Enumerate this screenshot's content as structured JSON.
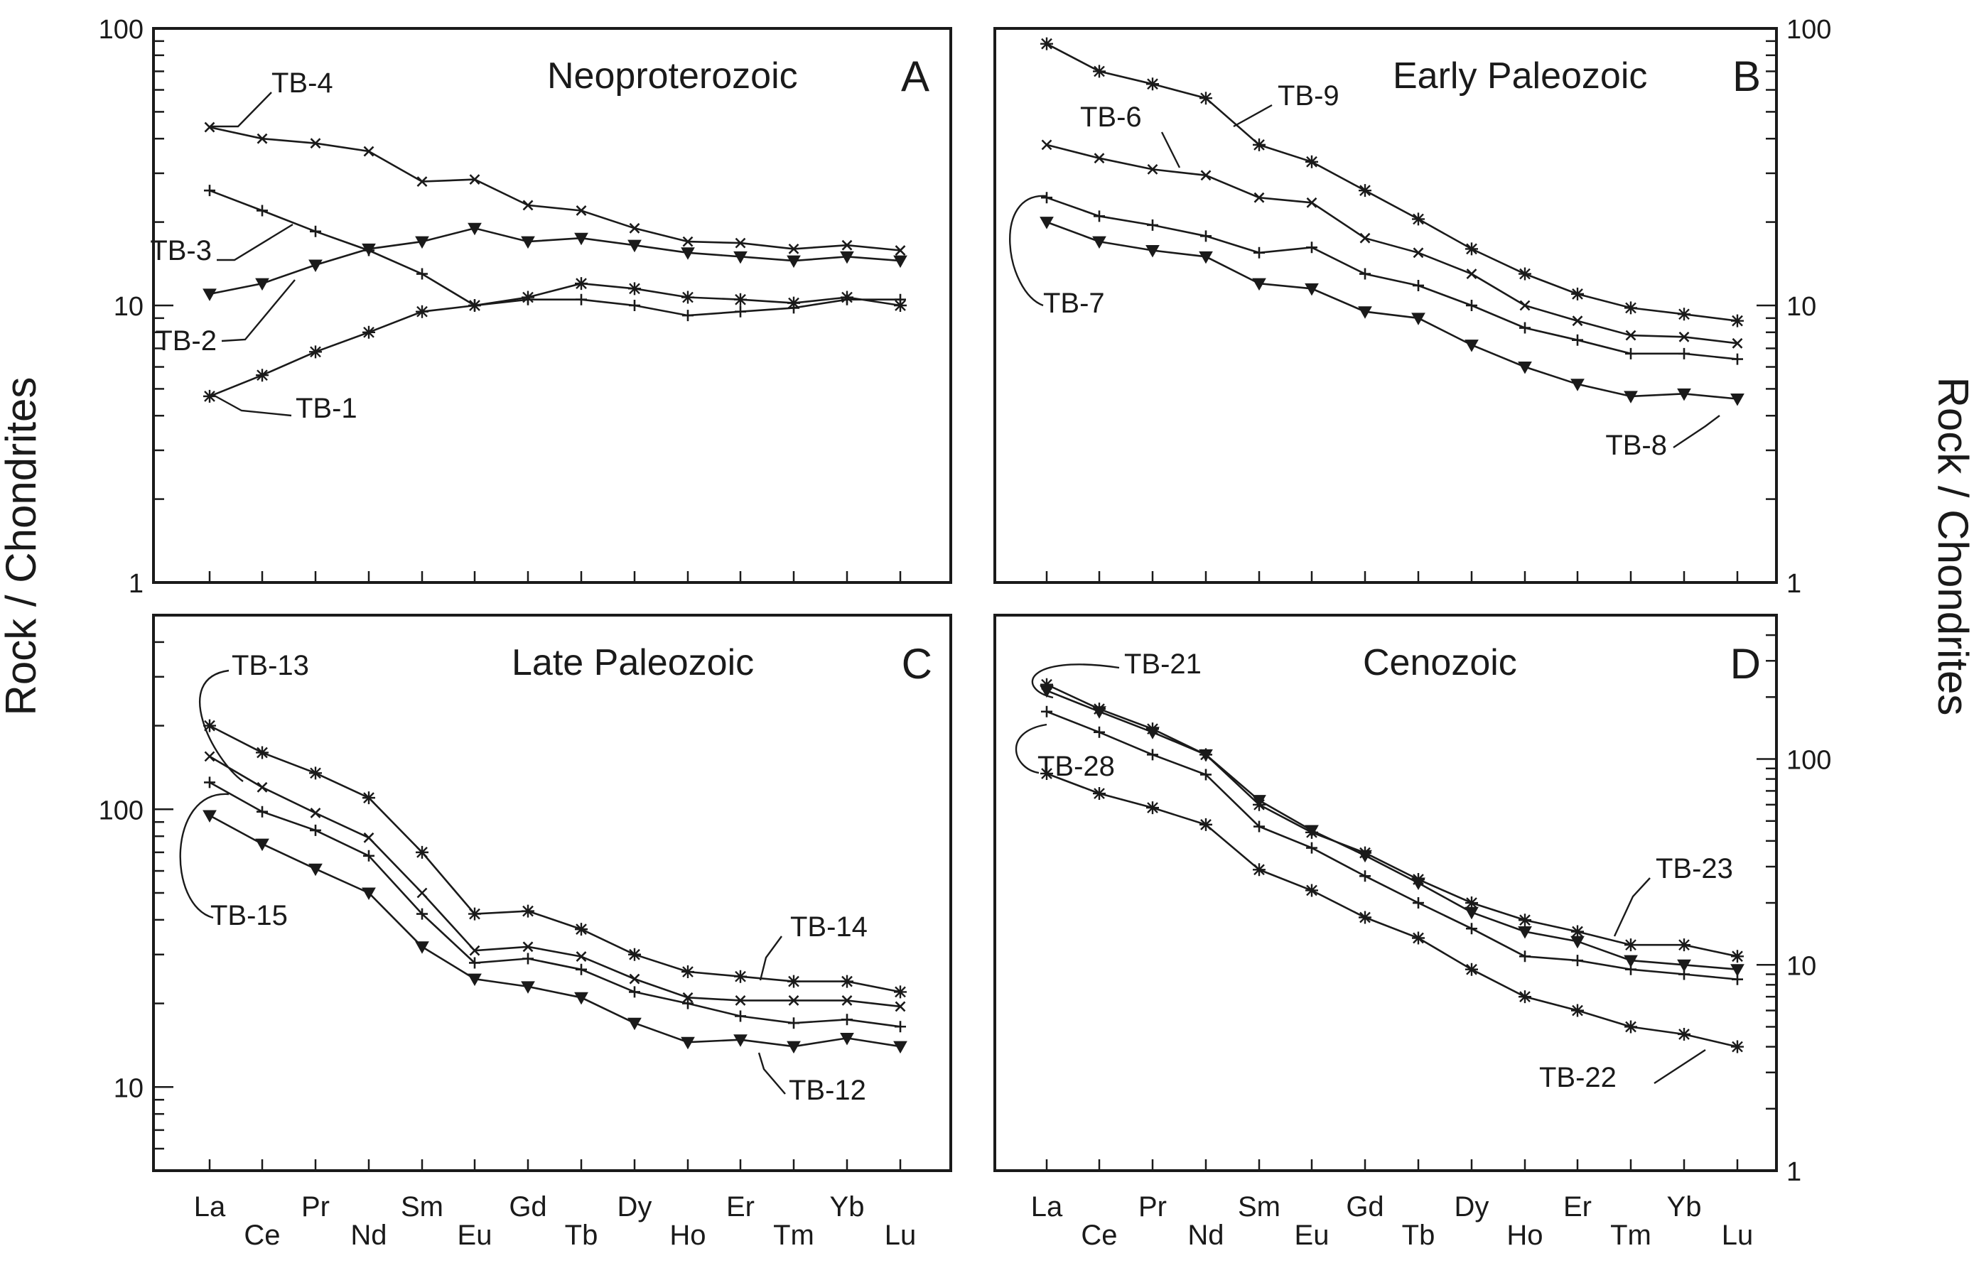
{
  "figure": {
    "ylabel_left": "Rock / Chondrites",
    "ylabel_right": "Rock / Chondrites",
    "line_color": "#1a1a1a"
  },
  "chart_data": [
    {
      "panel": "A",
      "type": "line",
      "title": "Neoproterozoic",
      "y_scale": "log",
      "ylim": [
        1,
        100
      ],
      "y_ticks": [
        "1",
        "10",
        "100"
      ],
      "y_axis_side": "left",
      "x": [
        "La",
        "Ce",
        "Pr",
        "Nd",
        "Sm",
        "Eu",
        "Gd",
        "Tb",
        "Dy",
        "Ho",
        "Er",
        "Tm",
        "Yb",
        "Lu"
      ],
      "series": [
        {
          "name": "TB-4",
          "marker": "x",
          "values": [
            44,
            40,
            38.5,
            36,
            28,
            28.5,
            23,
            22,
            19,
            17,
            16.8,
            16,
            16.5,
            15.8
          ]
        },
        {
          "name": "TB-3",
          "marker": "plus",
          "values": [
            26,
            22,
            18.5,
            15.8,
            13,
            10,
            10.5,
            10.5,
            10,
            9.2,
            9.5,
            9.8,
            10.5,
            10.5
          ]
        },
        {
          "name": "TB-2",
          "marker": "tri",
          "values": [
            11,
            12,
            14,
            16,
            17,
            19,
            17,
            17.5,
            16.5,
            15.5,
            15,
            14.5,
            15,
            14.5
          ]
        },
        {
          "name": "TB-1",
          "marker": "star",
          "values": [
            4.7,
            5.6,
            6.8,
            8,
            9.5,
            10,
            10.7,
            12,
            11.5,
            10.7,
            10.5,
            10.2,
            10.7,
            10
          ]
        }
      ]
    },
    {
      "panel": "B",
      "type": "line",
      "title": "Early Paleozoic",
      "y_scale": "log",
      "ylim": [
        1,
        100
      ],
      "y_ticks": [
        "1",
        "10",
        "100"
      ],
      "y_axis_side": "right",
      "x": [
        "La",
        "Ce",
        "Pr",
        "Nd",
        "Sm",
        "Eu",
        "Gd",
        "Tb",
        "Dy",
        "Ho",
        "Er",
        "Tm",
        "Yb",
        "Lu"
      ],
      "series": [
        {
          "name": "TB-9",
          "marker": "star",
          "values": [
            88,
            70,
            63,
            56,
            38,
            33,
            26,
            20.5,
            16,
            13,
            11,
            9.8,
            9.3,
            8.8
          ]
        },
        {
          "name": "TB-6",
          "marker": "x",
          "values": [
            38,
            34,
            31,
            29.5,
            24.5,
            23.5,
            17.5,
            15.5,
            13,
            10,
            8.8,
            7.8,
            7.7,
            7.3
          ]
        },
        {
          "name": "TB-7",
          "marker": "plus",
          "values": [
            24.5,
            21,
            19.5,
            17.8,
            15.5,
            16.2,
            13,
            11.8,
            10,
            8.3,
            7.5,
            6.7,
            6.7,
            6.4
          ]
        },
        {
          "name": "TB-8",
          "marker": "tri",
          "values": [
            20,
            17,
            15.8,
            15,
            12,
            11.5,
            9.5,
            9,
            7.2,
            6,
            5.2,
            4.7,
            4.8,
            4.6
          ]
        }
      ]
    },
    {
      "panel": "C",
      "type": "line",
      "title": "Late Paleozoic",
      "y_scale": "log",
      "ylim": [
        5,
        500
      ],
      "y_ticks": [
        "10",
        "100"
      ],
      "y_axis_side": "left",
      "x": [
        "La",
        "Ce",
        "Pr",
        "Nd",
        "Sm",
        "Eu",
        "Gd",
        "Tb",
        "Dy",
        "Ho",
        "Er",
        "Tm",
        "Yb",
        "Lu"
      ],
      "series": [
        {
          "name": "TB-13",
          "marker": "star",
          "values": [
            200,
            160,
            135,
            110,
            70,
            42,
            43,
            37,
            30,
            26,
            25,
            24,
            24,
            22
          ]
        },
        {
          "name": "TB-14",
          "marker": "x",
          "values": [
            155,
            120,
            97,
            79,
            50,
            31,
            32,
            29.5,
            24.5,
            21,
            20.5,
            20.5,
            20.5,
            19.5
          ]
        },
        {
          "name": "TB-15",
          "marker": "plus",
          "values": [
            125,
            98,
            84,
            68,
            42,
            28,
            29,
            26.5,
            22,
            20,
            18,
            17,
            17.5,
            16.5
          ]
        },
        {
          "name": "TB-12",
          "marker": "tri",
          "values": [
            95,
            75,
            61,
            50,
            32,
            24.5,
            23,
            21,
            17,
            14.5,
            14.8,
            14,
            15,
            14
          ]
        }
      ]
    },
    {
      "panel": "D",
      "type": "line",
      "title": "Cenozoic",
      "y_scale": "log",
      "ylim": [
        1,
        500
      ],
      "y_ticks": [
        "1",
        "10",
        "100"
      ],
      "y_axis_side": "right",
      "x": [
        "La",
        "Ce",
        "Pr",
        "Nd",
        "Sm",
        "Eu",
        "Gd",
        "Tb",
        "Dy",
        "Ho",
        "Er",
        "Tm",
        "Yb",
        "Lu"
      ],
      "series": [
        {
          "name": "TB-21",
          "marker": "star",
          "values": [
            230,
            175,
            140,
            105,
            60,
            44,
            35,
            26,
            20,
            16.5,
            14.5,
            12.5,
            12.5,
            11
          ]
        },
        {
          "name": "TB-23",
          "marker": "tri",
          "values": [
            215,
            170,
            135,
            105,
            63,
            45,
            34,
            25,
            18,
            14.5,
            13,
            10.5,
            10,
            9.5
          ]
        },
        {
          "name": "TB-28",
          "marker": "plus",
          "values": [
            170,
            135,
            105,
            84,
            47,
            37,
            27,
            20,
            15,
            11,
            10.5,
            9.5,
            9,
            8.5
          ]
        },
        {
          "name": "TB-22",
          "marker": "star",
          "values": [
            85,
            68,
            58,
            48,
            29,
            23,
            17,
            13.5,
            9.5,
            7,
            6,
            5,
            4.6,
            4
          ]
        }
      ]
    }
  ]
}
